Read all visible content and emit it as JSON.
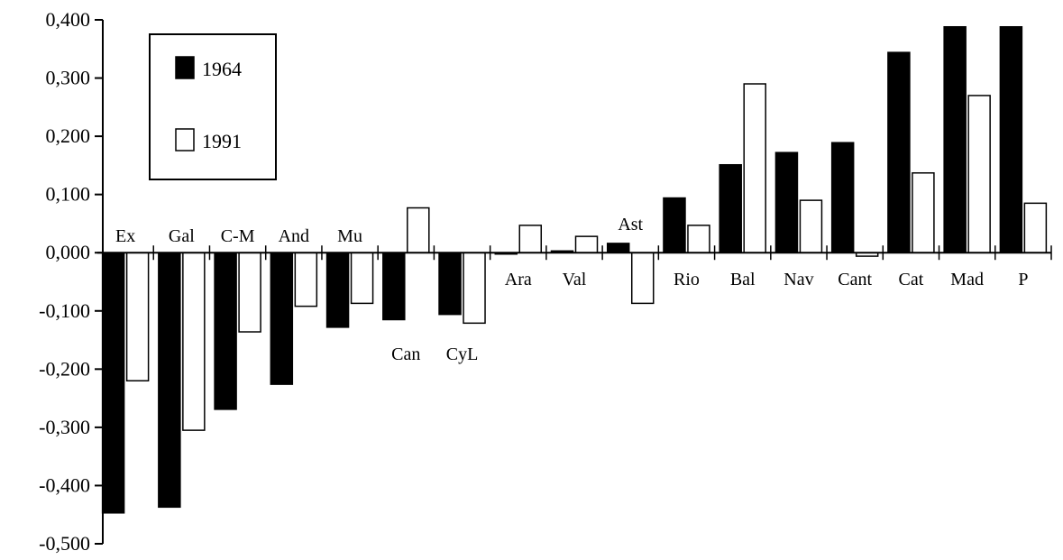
{
  "chart_data": {
    "type": "bar",
    "categories": [
      "Ex",
      "Gal",
      "C-M",
      "And",
      "Mu",
      "Can",
      "CyL",
      "Ara",
      "Val",
      "Ast",
      "Rio",
      "Bal",
      "Nav",
      "Cant",
      "Cat",
      "Mad",
      "P"
    ],
    "series": [
      {
        "name": "1964",
        "color": "#000000",
        "values": [
          -0.447,
          -0.437,
          -0.269,
          -0.226,
          -0.128,
          -0.115,
          -0.106,
          0.0,
          0.003,
          0.016,
          0.094,
          0.151,
          0.172,
          0.189,
          0.344,
          0.388,
          0.388
        ]
      },
      {
        "name": "1991",
        "color": "#ffffff",
        "values": [
          -0.22,
          -0.305,
          -0.136,
          -0.092,
          -0.087,
          0.077,
          -0.121,
          0.047,
          0.028,
          -0.087,
          0.047,
          0.29,
          0.09,
          -0.006,
          0.137,
          0.27,
          0.085
        ]
      }
    ],
    "label_position": [
      "above",
      "above",
      "above",
      "above",
      "above",
      "below",
      "below",
      "below",
      "below",
      "above",
      "below",
      "below",
      "below",
      "below",
      "below",
      "below",
      "below"
    ],
    "ylim": [
      -0.5,
      0.4
    ],
    "yticks": [
      "0,400",
      "0,300",
      "0,200",
      "0,100",
      "0,000",
      "-0,100",
      "-0,200",
      "-0,300",
      "-0,400",
      "-0,500"
    ],
    "ytick_values": [
      0.4,
      0.3,
      0.2,
      0.1,
      0.0,
      -0.1,
      -0.2,
      -0.3,
      -0.4,
      -0.5
    ],
    "grid": false,
    "legend_position": "top-left",
    "title": "",
    "xlabel": "",
    "ylabel": ""
  }
}
